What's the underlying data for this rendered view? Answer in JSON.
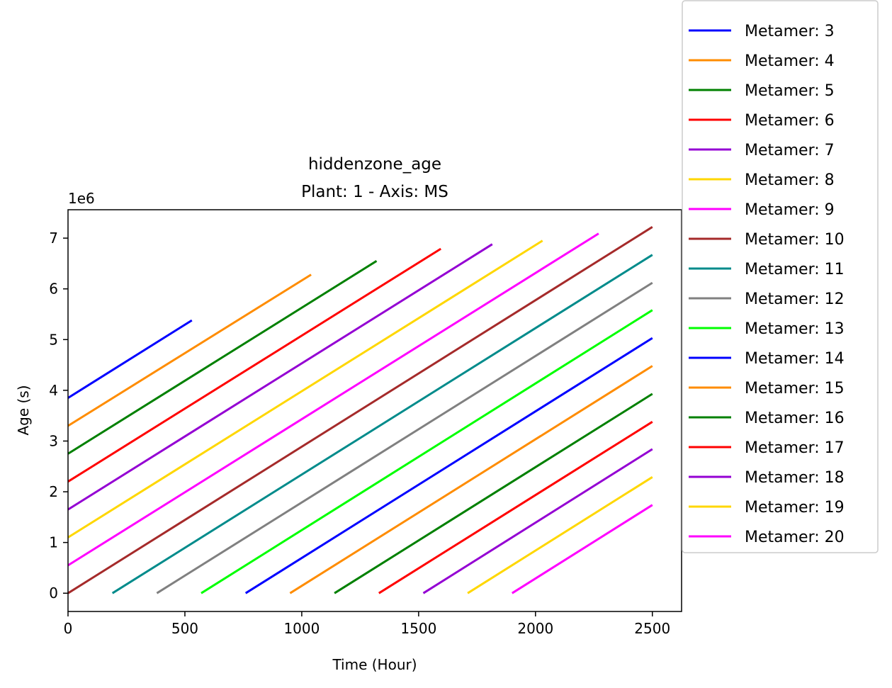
{
  "chart_data": {
    "type": "line",
    "title": "hiddenzone_age",
    "subtitle": "Plant: 1 - Axis: MS",
    "xlabel": "Time (Hour)",
    "ylabel": "Age (s)",
    "y_offset_label": "1e6",
    "xlim": [
      0,
      2625
    ],
    "ylim": [
      -0.36,
      7.56
    ],
    "xticks": [
      0,
      500,
      1000,
      1500,
      2000,
      2500
    ],
    "yticks": [
      0,
      1,
      2,
      3,
      4,
      5,
      6,
      7
    ],
    "grid": false,
    "legend_position": "outside upper right",
    "series": [
      {
        "name": "Metamer: 3",
        "color": "#0000ff",
        "x": [
          0,
          530
        ],
        "y": [
          3.85,
          5.38
        ]
      },
      {
        "name": "Metamer: 4",
        "color": "#ff8c00",
        "x": [
          0,
          1040
        ],
        "y": [
          3.3,
          6.28
        ]
      },
      {
        "name": "Metamer: 5",
        "color": "#008000",
        "x": [
          0,
          1320
        ],
        "y": [
          2.75,
          6.55
        ]
      },
      {
        "name": "Metamer: 6",
        "color": "#ff0000",
        "x": [
          0,
          1595
        ],
        "y": [
          2.2,
          6.79
        ]
      },
      {
        "name": "Metamer: 7",
        "color": "#9400d3",
        "x": [
          0,
          1815
        ],
        "y": [
          1.65,
          6.88
        ]
      },
      {
        "name": "Metamer: 8",
        "color": "#ffd700",
        "x": [
          0,
          2030
        ],
        "y": [
          1.1,
          6.95
        ]
      },
      {
        "name": "Metamer: 9",
        "color": "#ff00ff",
        "x": [
          0,
          2270
        ],
        "y": [
          0.55,
          7.09
        ]
      },
      {
        "name": "Metamer: 10",
        "color": "#a52a2a",
        "x": [
          0,
          2500
        ],
        "y": [
          0.0,
          7.22
        ]
      },
      {
        "name": "Metamer: 11",
        "color": "#008b8b",
        "x": [
          190,
          2500
        ],
        "y": [
          0.0,
          6.67
        ]
      },
      {
        "name": "Metamer: 12",
        "color": "#808080",
        "x": [
          380,
          2500
        ],
        "y": [
          0.0,
          6.12
        ]
      },
      {
        "name": "Metamer: 13",
        "color": "#00ff00",
        "x": [
          570,
          2500
        ],
        "y": [
          0.0,
          5.58
        ]
      },
      {
        "name": "Metamer: 14",
        "color": "#0000ff",
        "x": [
          760,
          2500
        ],
        "y": [
          0.0,
          5.03
        ]
      },
      {
        "name": "Metamer: 15",
        "color": "#ff8c00",
        "x": [
          950,
          2500
        ],
        "y": [
          0.0,
          4.48
        ]
      },
      {
        "name": "Metamer: 16",
        "color": "#008000",
        "x": [
          1140,
          2500
        ],
        "y": [
          0.0,
          3.93
        ]
      },
      {
        "name": "Metamer: 17",
        "color": "#ff0000",
        "x": [
          1330,
          2500
        ],
        "y": [
          0.0,
          3.38
        ]
      },
      {
        "name": "Metamer: 18",
        "color": "#9400d3",
        "x": [
          1520,
          2500
        ],
        "y": [
          0.0,
          2.84
        ]
      },
      {
        "name": "Metamer: 19",
        "color": "#ffd700",
        "x": [
          1710,
          2500
        ],
        "y": [
          0.0,
          2.29
        ]
      },
      {
        "name": "Metamer: 20",
        "color": "#ff00ff",
        "x": [
          1900,
          2500
        ],
        "y": [
          0.0,
          1.74
        ]
      }
    ]
  }
}
